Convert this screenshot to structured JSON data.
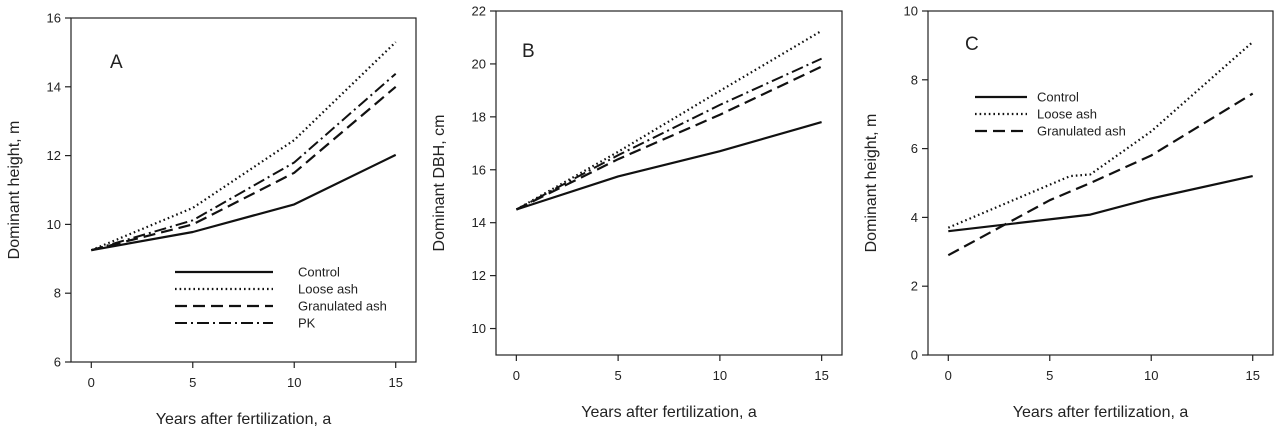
{
  "chart_data": [
    {
      "type": "line",
      "panel_label": "A",
      "xlabel": "Years after fertilization, a",
      "ylabel": "Dominant height, m",
      "xlim": [
        -1,
        16
      ],
      "ylim": [
        6,
        16
      ],
      "xticks": [
        0,
        5,
        10,
        15
      ],
      "yticks": [
        6,
        8,
        10,
        12,
        14,
        16
      ],
      "legend_position": "bottom-right",
      "series": [
        {
          "name": "Control",
          "x": [
            0,
            5,
            10,
            15
          ],
          "y": [
            9.25,
            9.78,
            10.58,
            12.02
          ],
          "dash": "solid"
        },
        {
          "name": "Loose ash",
          "x": [
            0,
            5,
            10,
            15
          ],
          "y": [
            9.25,
            10.48,
            12.45,
            15.3
          ],
          "dash": "dotted"
        },
        {
          "name": "Granulated ash",
          "x": [
            0,
            5,
            10,
            15
          ],
          "y": [
            9.25,
            10.0,
            11.5,
            14.0
          ],
          "dash": "dashed"
        },
        {
          "name": "PK",
          "x": [
            0,
            5,
            10,
            15
          ],
          "y": [
            9.25,
            10.12,
            11.8,
            14.38
          ],
          "dash": "dashdot"
        }
      ]
    },
    {
      "type": "line",
      "panel_label": "B",
      "xlabel": "Years after fertilization, a",
      "ylabel": "Dominant DBH, cm",
      "xlim": [
        -1,
        16
      ],
      "ylim": [
        9,
        22
      ],
      "xticks": [
        0,
        5,
        10,
        15
      ],
      "yticks": [
        10,
        12,
        14,
        16,
        18,
        20,
        22
      ],
      "series": [
        {
          "x": [
            0,
            5,
            10,
            15
          ],
          "y": [
            14.5,
            15.75,
            16.7,
            17.8
          ],
          "dash": "solid"
        },
        {
          "x": [
            0,
            5,
            10,
            15
          ],
          "y": [
            14.5,
            16.68,
            18.98,
            21.25
          ],
          "dash": "dotted"
        },
        {
          "x": [
            0,
            5,
            10,
            15
          ],
          "y": [
            14.5,
            16.4,
            18.08,
            19.9
          ],
          "dash": "dashed"
        },
        {
          "x": [
            0,
            5,
            10,
            15
          ],
          "y": [
            14.5,
            16.55,
            18.45,
            20.2
          ],
          "dash": "dashdot"
        }
      ]
    },
    {
      "type": "line",
      "panel_label": "C",
      "xlabel": "Years after fertilization, a",
      "ylabel": "Dominant height, m",
      "xlim": [
        -1,
        16
      ],
      "ylim": [
        0,
        10
      ],
      "xticks": [
        0,
        5,
        10,
        15
      ],
      "yticks": [
        0,
        2,
        4,
        6,
        8,
        10
      ],
      "legend_position": "top-left",
      "series": [
        {
          "name": "Control",
          "x": [
            0,
            7,
            10,
            15
          ],
          "y": [
            3.6,
            4.08,
            4.55,
            5.2
          ],
          "dash": "solid"
        },
        {
          "name": "Loose ash",
          "x": [
            0,
            6,
            7,
            10,
            15
          ],
          "y": [
            3.7,
            5.2,
            5.25,
            6.5,
            9.1
          ],
          "dash": "dotted"
        },
        {
          "name": "Granulated ash",
          "x": [
            0,
            5,
            7,
            10,
            15
          ],
          "y": [
            2.9,
            4.5,
            5.0,
            5.8,
            7.6
          ],
          "dash": "dashed"
        }
      ]
    }
  ]
}
